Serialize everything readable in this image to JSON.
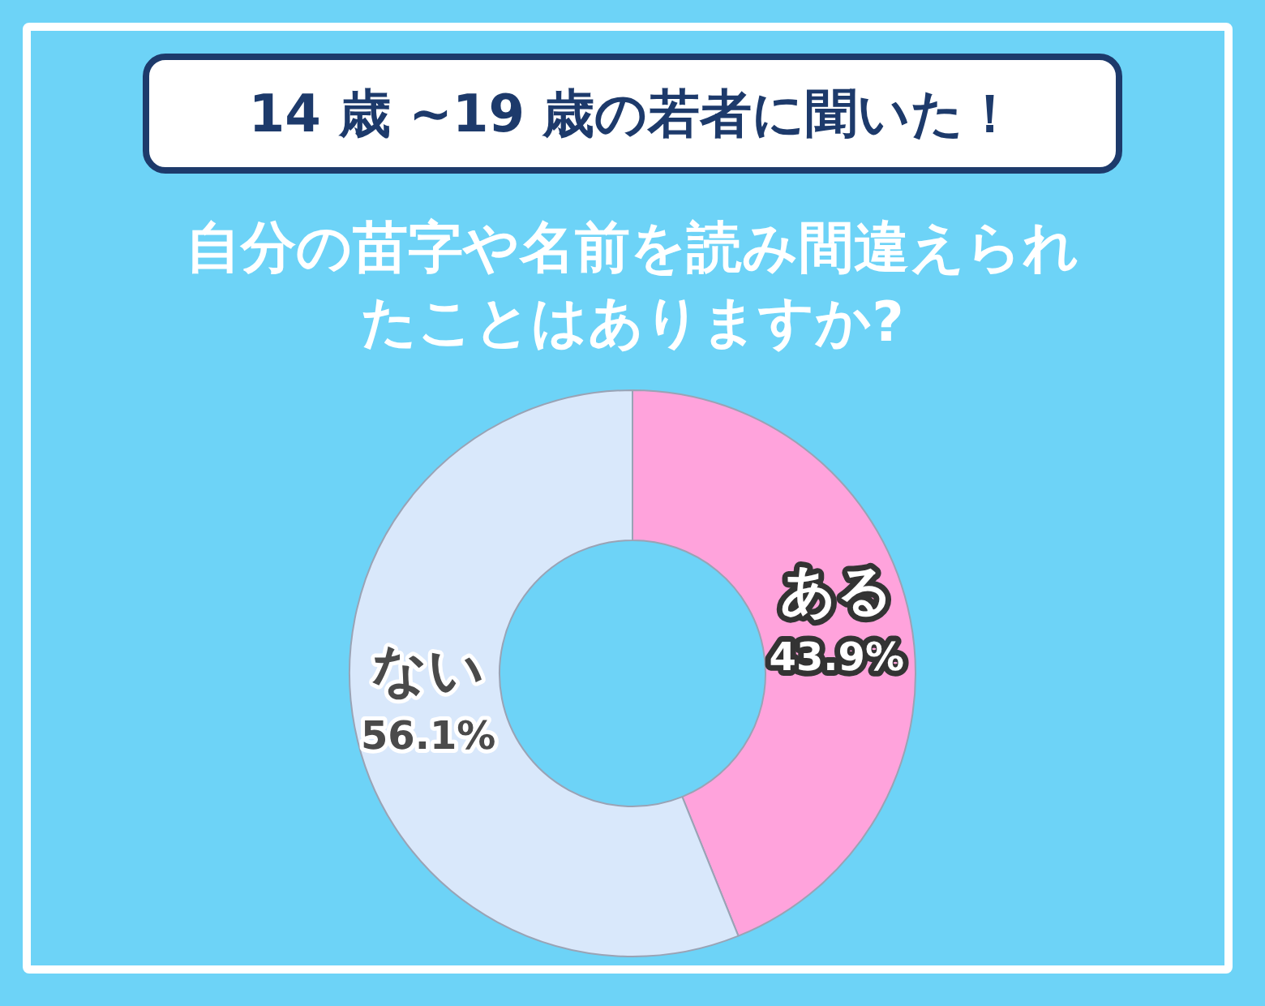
{
  "chart_data": {
    "type": "donut",
    "title": "14 歳 ~19 歳の若者に聞いた！",
    "subtitle": "自分の苗字や名前を読み間違えられたことはありますか?",
    "categories": [
      "ある",
      "ない"
    ],
    "values": [
      43.9,
      56.1
    ],
    "colors": [
      "#ffa3dc",
      "#d9e8fb"
    ],
    "value_labels": [
      "43.9%",
      "56.1%"
    ],
    "legend": false
  }
}
